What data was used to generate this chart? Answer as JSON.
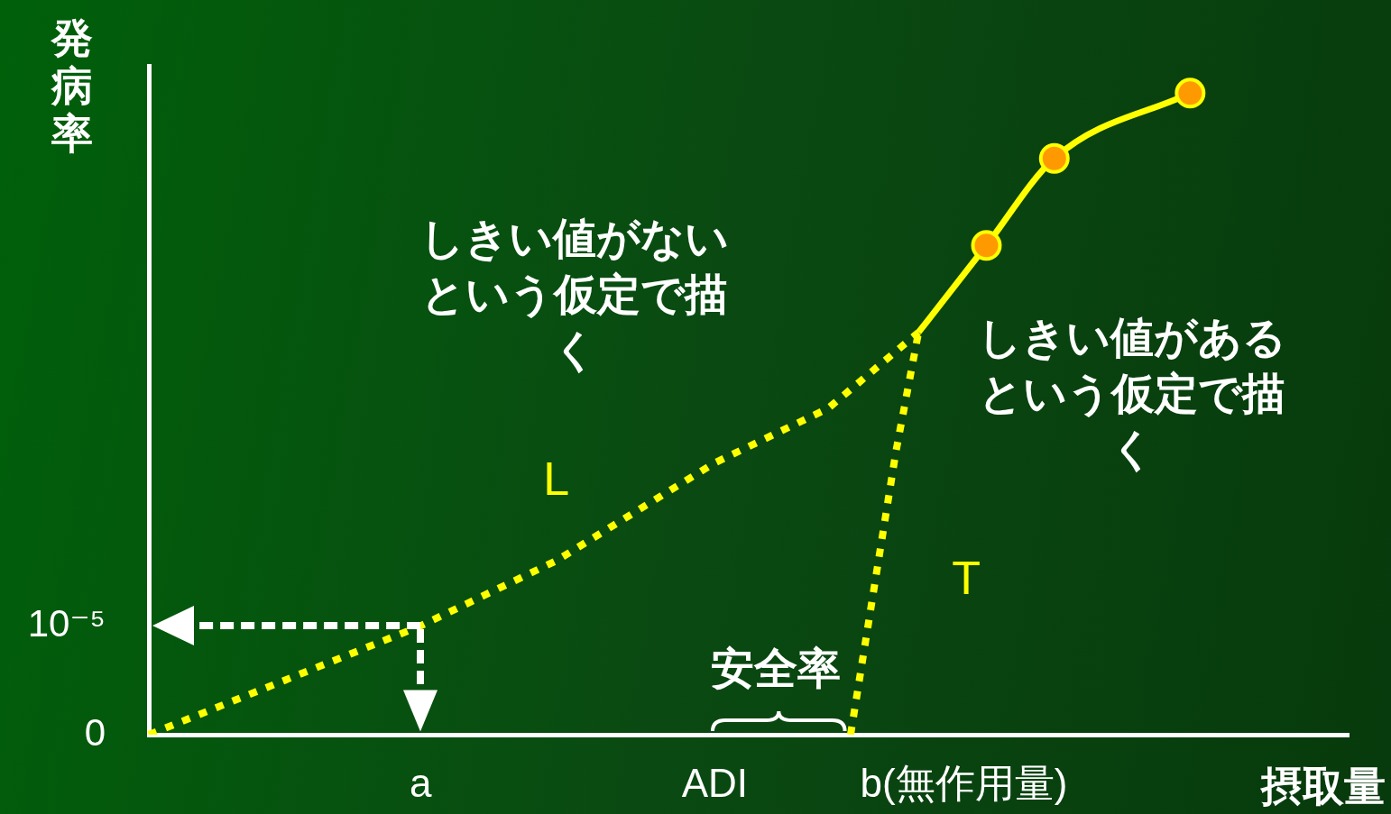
{
  "chart_data": {
    "type": "line",
    "xlabel": "摂取量",
    "ylabel": "発病率",
    "legend": false,
    "grid": false,
    "marker": "none",
    "categories": [
      null,
      null,
      null,
      null,
      null,
      null,
      null,
      null,
      null,
      null,
      null,
      null,
      "a",
      null,
      null,
      null,
      null,
      null,
      null,
      null,
      null,
      null,
      null,
      null,
      null,
      "ADI",
      null,
      null,
      null,
      null,
      null,
      null,
      null,
      null,
      null,
      null,
      "b(無作用量)",
      null,
      null,
      null,
      null,
      null,
      null,
      null,
      null,
      null,
      null,
      null,
      null,
      null,
      null,
      null,
      null,
      null
    ],
    "ylim": [
      0,
      6.15e-05
    ],
    "yticks": [
      0,
      {
        "value": 1e-05,
        "label": "10⁻⁵"
      }
    ],
    "series": [
      {
        "name": "L",
        "color": "#ffff00",
        "line_style": "dotted",
        "values": [
          0,
          null,
          null,
          null,
          null,
          null,
          5e-06,
          null,
          null,
          null,
          null,
          null,
          1e-05,
          null,
          null,
          null,
          null,
          null,
          1.6e-05,
          null,
          null,
          null,
          null,
          null,
          null,
          2.5e-05,
          null,
          null,
          null,
          null,
          3e-05,
          null,
          null,
          null,
          3.7e-05,
          null,
          null,
          null,
          null,
          null,
          null,
          null,
          null,
          null,
          null,
          null,
          null,
          null,
          null,
          null,
          null,
          null,
          null,
          null
        ]
      },
      {
        "name": "T",
        "color": "#ffff00",
        "line_style": "dotted",
        "values": [
          null,
          null,
          null,
          null,
          null,
          null,
          null,
          null,
          null,
          null,
          null,
          null,
          null,
          null,
          null,
          null,
          null,
          null,
          null,
          null,
          null,
          null,
          null,
          null,
          null,
          null,
          null,
          null,
          null,
          null,
          null,
          0,
          null,
          2.6e-05,
          3.7e-05,
          null,
          null,
          null,
          null,
          null,
          null,
          null,
          null,
          null,
          null,
          null,
          null,
          null,
          null,
          null,
          null,
          null,
          null,
          null
        ]
      },
      {
        "color": "#ffff00",
        "line_style": "solid",
        "values": [
          null,
          null,
          null,
          null,
          null,
          null,
          null,
          null,
          null,
          null,
          null,
          null,
          null,
          null,
          null,
          null,
          null,
          null,
          null,
          null,
          null,
          null,
          null,
          null,
          null,
          null,
          null,
          null,
          null,
          null,
          null,
          null,
          null,
          null,
          3.7e-05,
          null,
          null,
          4.5e-05,
          null,
          null,
          5.3e-05,
          null,
          null,
          null,
          null,
          null,
          5.9e-05,
          null,
          null,
          null,
          null,
          null,
          null,
          null
        ]
      },
      {
        "type": "scatter",
        "color": "#ff9900",
        "marker": "circle",
        "values": [
          null,
          null,
          null,
          null,
          null,
          null,
          null,
          null,
          null,
          null,
          null,
          null,
          null,
          null,
          null,
          null,
          null,
          null,
          null,
          null,
          null,
          null,
          null,
          null,
          null,
          null,
          null,
          null,
          null,
          null,
          null,
          null,
          null,
          null,
          null,
          null,
          null,
          4.5e-05,
          null,
          null,
          5.3e-05,
          null,
          null,
          null,
          null,
          null,
          5.9e-05,
          null,
          null,
          null,
          null,
          null,
          null,
          null
        ]
      }
    ],
    "annotations": [
      "しきい値がないという仮定で描く",
      "しきい値があるという仮定で描く",
      "安全率"
    ]
  }
}
